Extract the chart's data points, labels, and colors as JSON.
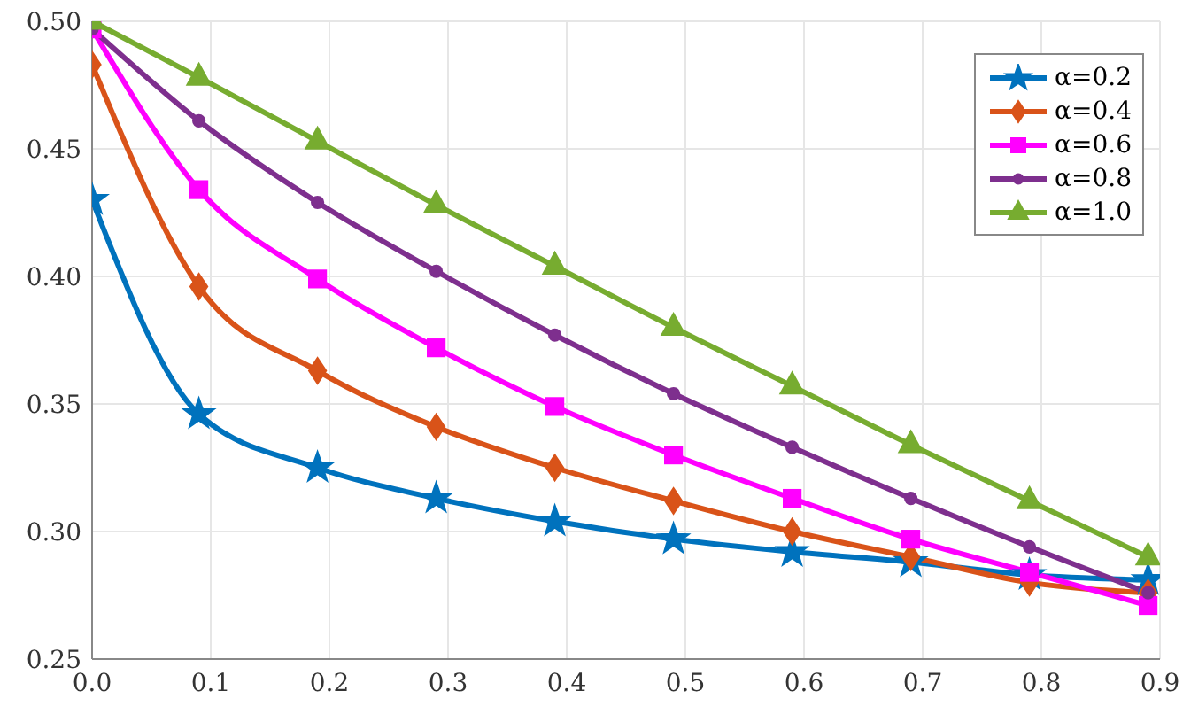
{
  "chart_data": {
    "type": "line",
    "x": [
      0,
      0.09,
      0.19,
      0.29,
      0.39,
      0.49,
      0.59,
      0.69,
      0.79,
      0.89
    ],
    "series": [
      {
        "name": "α=0.2",
        "color": "#0072bd",
        "marker": "star",
        "values": [
          0.43,
          0.346,
          0.325,
          0.313,
          0.304,
          0.297,
          0.292,
          0.288,
          0.283,
          0.281
        ]
      },
      {
        "name": "α=0.4",
        "color": "#d95319",
        "marker": "diamond",
        "values": [
          0.483,
          0.396,
          0.363,
          0.341,
          0.325,
          0.312,
          0.3,
          0.29,
          0.28,
          0.276
        ]
      },
      {
        "name": "α=0.6",
        "color": "#ff00ff",
        "marker": "square",
        "values": [
          0.497,
          0.434,
          0.399,
          0.372,
          0.349,
          0.33,
          0.313,
          0.297,
          0.284,
          0.271
        ]
      },
      {
        "name": "α=0.8",
        "color": "#7e2f8e",
        "marker": "circle",
        "values": [
          0.497,
          0.461,
          0.429,
          0.402,
          0.377,
          0.354,
          0.333,
          0.313,
          0.294,
          0.276
        ]
      },
      {
        "name": "α=1.0",
        "color": "#77ac30",
        "marker": "triangle",
        "values": [
          0.5,
          0.478,
          0.453,
          0.428,
          0.404,
          0.38,
          0.357,
          0.334,
          0.312,
          0.29
        ]
      }
    ],
    "xlim": [
      0,
      0.9
    ],
    "xticks": [
      {
        "value": 0,
        "label": "0.0"
      },
      0.1,
      0.2,
      0.3,
      0.4,
      0.5,
      0.6,
      0.7,
      0.8,
      0.9
    ],
    "ylim": [
      0.25,
      0.5
    ],
    "yticks": [
      0.25,
      {
        "value": 0.3,
        "label": "0.30"
      },
      0.35,
      {
        "value": 0.4,
        "label": "0.40"
      },
      0.45,
      {
        "value": 0.5,
        "label": "0.50"
      }
    ],
    "grid": true,
    "legend": "top right",
    "line_style": "solid"
  }
}
